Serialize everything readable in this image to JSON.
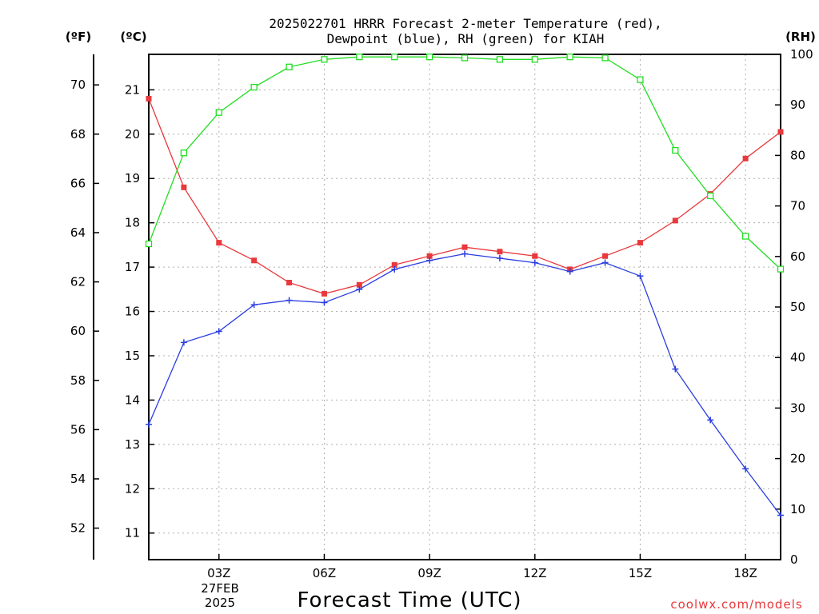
{
  "chart_data": {
    "type": "line",
    "title_line1": "2025022701 HRRR Forecast 2-meter Temperature (red),",
    "title_line2": "Dewpoint (blue), RH (green) for KIAH",
    "xlabel": "Forecast Time (UTC)",
    "date_label_line1": "27FEB",
    "date_label_line2": "2025",
    "credit": "coolwx.com/models",
    "units": {
      "fahrenheit": "(ºF)",
      "celsius": "(ºC)",
      "rh": "(RH)"
    },
    "x_hours": [
      1,
      2,
      3,
      4,
      5,
      6,
      7,
      8,
      9,
      10,
      11,
      12,
      13,
      14,
      15,
      16,
      17,
      18,
      19
    ],
    "x_range": [
      1,
      19
    ],
    "x_ticks": [
      {
        "hour": 3,
        "label": "03Z"
      },
      {
        "hour": 6,
        "label": "06Z"
      },
      {
        "hour": 9,
        "label": "09Z"
      },
      {
        "hour": 12,
        "label": "12Z"
      },
      {
        "hour": 15,
        "label": "15Z"
      },
      {
        "hour": 18,
        "label": "18Z"
      }
    ],
    "celsius_range": [
      10.4,
      21.8
    ],
    "celsius_ticks": [
      "11",
      "12",
      "13",
      "14",
      "15",
      "16",
      "17",
      "18",
      "19",
      "20",
      "21"
    ],
    "fahrenheit_ticks": [
      "52",
      "54",
      "56",
      "58",
      "60",
      "62",
      "64",
      "66",
      "68",
      "70"
    ],
    "rh_range": [
      0,
      100
    ],
    "rh_ticks": [
      "0",
      "10",
      "20",
      "30",
      "40",
      "50",
      "60",
      "70",
      "80",
      "90",
      "100"
    ],
    "grid": true,
    "colors": {
      "temperature": "#e8393c",
      "dewpoint": "#2b3ee0",
      "rh": "#22dd22",
      "axis": "#000000",
      "credit": "#e8393c"
    },
    "series": [
      {
        "key": "temperature",
        "marker": "square",
        "values": [
          20.8,
          18.8,
          17.55,
          17.15,
          16.65,
          16.4,
          16.6,
          17.05,
          17.25,
          17.45,
          17.35,
          17.25,
          16.95,
          17.25,
          17.55,
          18.05,
          18.65,
          19.45,
          20.05
        ]
      },
      {
        "key": "dewpoint",
        "marker": "plus",
        "values": [
          13.45,
          15.3,
          15.55,
          16.15,
          16.25,
          16.2,
          16.5,
          16.95,
          17.15,
          17.3,
          17.2,
          17.1,
          16.9,
          17.1,
          16.8,
          14.7,
          13.55,
          12.45,
          11.4
        ]
      },
      {
        "key": "rh",
        "marker": "open-square",
        "values": [
          62.5,
          80.5,
          88.5,
          93.5,
          97.5,
          99.0,
          99.5,
          99.5,
          99.5,
          99.3,
          99.0,
          99.0,
          99.5,
          99.3,
          95.0,
          81.0,
          72.0,
          64.0,
          57.5
        ]
      }
    ]
  }
}
